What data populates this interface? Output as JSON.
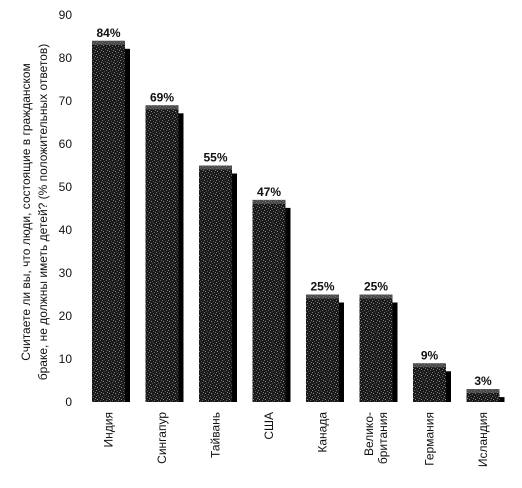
{
  "chart_data": {
    "type": "bar",
    "title": "",
    "ylabel_lines": [
      "Считаете ли вы, что люди, состоящие в гражданском",
      "браке, не должны иметь детей? (% положительных ответов)"
    ],
    "xlabel": "",
    "categories": [
      [
        "Индия"
      ],
      [
        "Сингапур"
      ],
      [
        "Тайвань"
      ],
      [
        "США"
      ],
      [
        "Канада"
      ],
      [
        "Велико-",
        "британия"
      ],
      [
        "Германия"
      ],
      [
        "Исландия"
      ]
    ],
    "values": [
      84,
      69,
      55,
      47,
      25,
      25,
      9,
      3
    ],
    "data_labels": [
      "84%",
      "69%",
      "55%",
      "47%",
      "25%",
      "25%",
      "9%",
      "3%"
    ],
    "ylim": [
      0,
      90
    ],
    "yticks": [
      0,
      10,
      20,
      30,
      40,
      50,
      60,
      70,
      80,
      90
    ],
    "grid": false,
    "colors": {
      "bar": "#1a1a1a",
      "bar_speckle": "#6e6e6e",
      "bar_shadow": "#000000",
      "background": "#ffffff"
    }
  }
}
